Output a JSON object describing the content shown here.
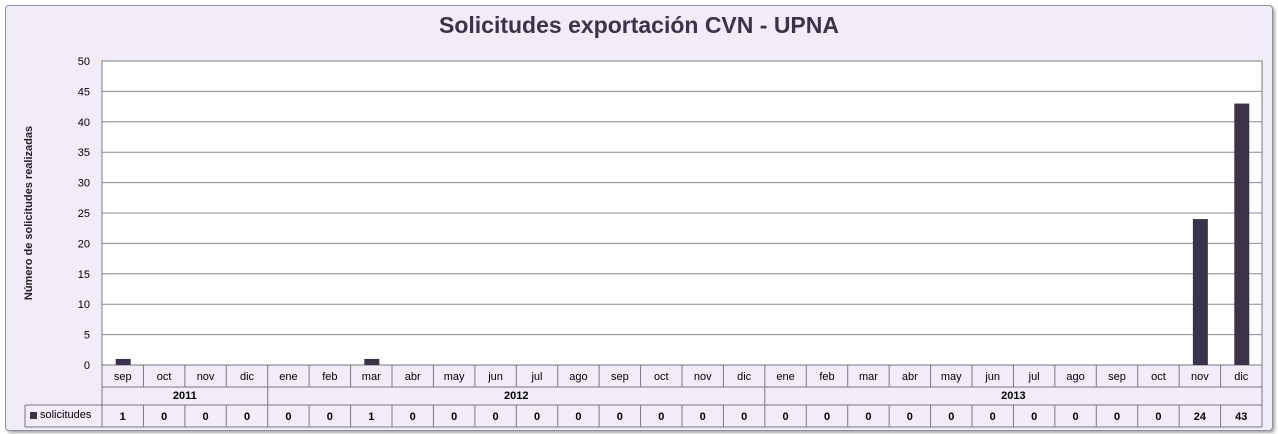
{
  "chart_data": {
    "type": "bar",
    "title": "Solicitudes exportación CVN - UPNA",
    "xlabel": "",
    "ylabel": "Número de solicitudes realizadas",
    "ylim": [
      0,
      50
    ],
    "yticks": [
      "0",
      "5",
      "10",
      "15",
      "20",
      "25",
      "30",
      "35",
      "40",
      "45",
      "50"
    ],
    "grid": true,
    "bar_color": "#3b3349",
    "categories": [
      "sep",
      "oct",
      "nov",
      "dic",
      "ene",
      "feb",
      "mar",
      "abr",
      "may",
      "jun",
      "jul",
      "ago",
      "sep",
      "oct",
      "nov",
      "dic",
      "ene",
      "feb",
      "mar",
      "abr",
      "may",
      "jun",
      "jul",
      "ago",
      "sep",
      "oct",
      "nov",
      "dic"
    ],
    "years": [
      {
        "label": "2011",
        "count": 4
      },
      {
        "label": "2012",
        "count": 12
      },
      {
        "label": "2013",
        "count": 12
      }
    ],
    "series": [
      {
        "name": "solicitudes",
        "values": [
          1,
          0,
          0,
          0,
          0,
          0,
          1,
          0,
          0,
          0,
          0,
          0,
          0,
          0,
          0,
          0,
          0,
          0,
          0,
          0,
          0,
          0,
          0,
          0,
          0,
          0,
          24,
          43
        ],
        "table_values": [
          "1",
          "0",
          "0",
          "0",
          "0",
          "0",
          "1",
          "0",
          "0",
          "0",
          "0",
          "0",
          "0",
          "0",
          "0",
          "0",
          "0",
          "0",
          "0",
          "0",
          "0",
          "0",
          "0",
          "0",
          "0",
          "0",
          "24",
          "43"
        ]
      }
    ]
  }
}
